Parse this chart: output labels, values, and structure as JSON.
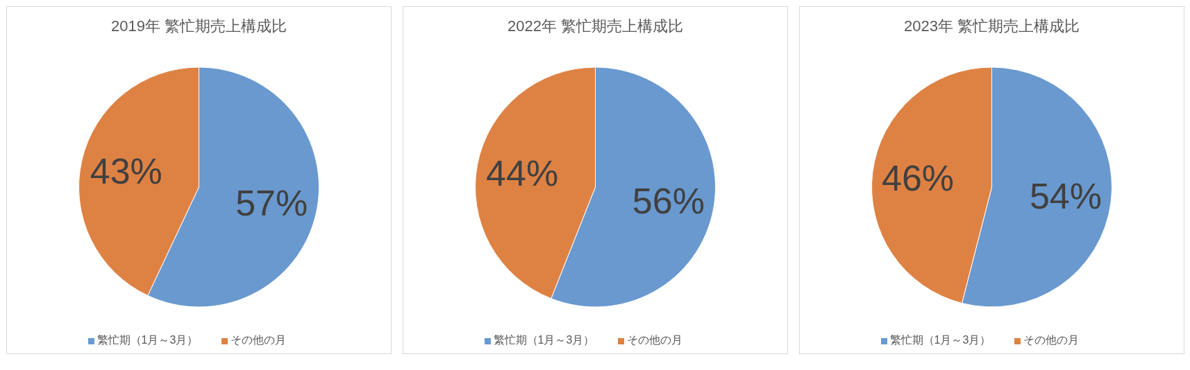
{
  "chart_data": [
    {
      "type": "pie",
      "title": "2019年 繁忙期売上構成比",
      "categories": [
        "繁忙期（1月～3月）",
        "その他の月"
      ],
      "values": [
        57,
        43
      ],
      "colors": [
        "#6999cf",
        "#de8244"
      ],
      "value_labels": [
        "57%",
        "43%"
      ],
      "legend": "bottom"
    },
    {
      "type": "pie",
      "title": "2022年 繁忙期売上構成比",
      "categories": [
        "繁忙期（1月～3月）",
        "その他の月"
      ],
      "values": [
        56,
        44
      ],
      "colors": [
        "#6999cf",
        "#de8244"
      ],
      "value_labels": [
        "56%",
        "44%"
      ],
      "legend": "bottom"
    },
    {
      "type": "pie",
      "title": "2023年 繁忙期売上構成比",
      "categories": [
        "繁忙期（1月～3月）",
        "その他の月"
      ],
      "values": [
        54,
        46
      ],
      "colors": [
        "#6999cf",
        "#de8244"
      ],
      "value_labels": [
        "54%",
        "46%"
      ],
      "legend": "bottom"
    }
  ]
}
